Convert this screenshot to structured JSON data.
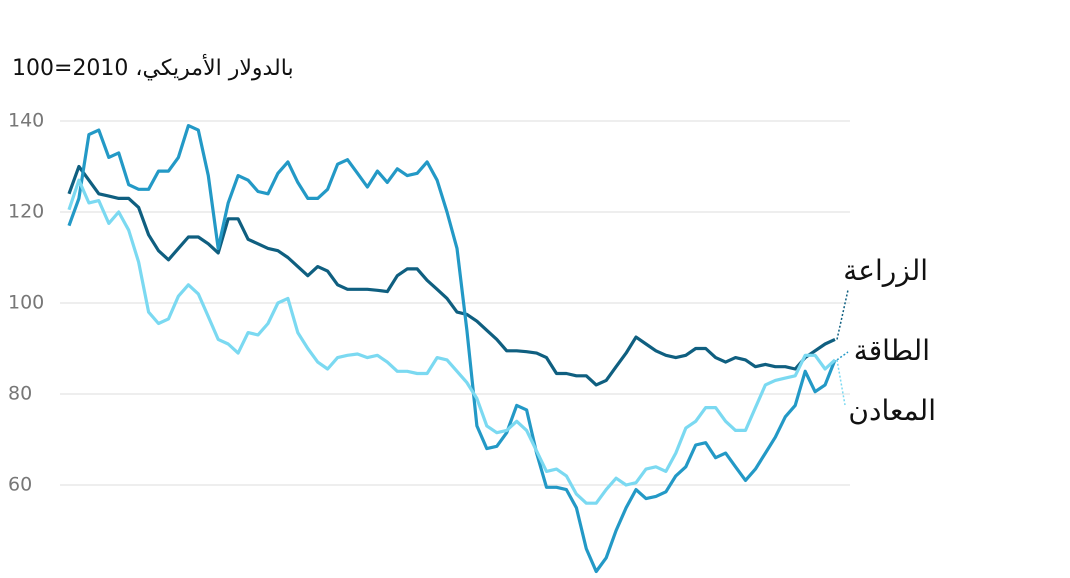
{
  "chart_data": {
    "type": "line",
    "title": "بالدولار الأمريكي، 2010=100",
    "ylim": [
      40,
      150
    ],
    "yticks": [
      60,
      80,
      100,
      120,
      140
    ],
    "grid": true,
    "series": [
      {
        "name": "الزراعة",
        "color": "#0f5f80",
        "values": [
          124,
          130,
          127,
          124,
          123.5,
          123,
          123,
          121,
          115,
          111.5,
          109.5,
          112,
          114.5,
          114.5,
          113,
          111,
          118.5,
          118.5,
          114,
          113,
          112,
          111.5,
          110,
          108,
          106,
          108,
          107,
          104,
          103,
          103,
          103,
          102.8,
          102.5,
          106,
          107.5,
          107.5,
          105,
          103,
          101,
          98,
          97.5,
          96,
          94,
          92,
          89.5,
          89.5,
          89.3,
          89,
          88,
          84.5,
          84.5,
          84,
          84,
          82,
          83,
          86,
          89,
          92.5,
          91,
          89.5,
          88.5,
          88,
          88.5,
          90,
          90,
          88,
          87,
          88,
          87.5,
          86,
          86.5,
          86,
          86,
          85.5,
          88,
          89.5,
          91,
          92
        ]
      },
      {
        "name": "الطاقة",
        "color": "#2399c6",
        "values": [
          117,
          123,
          137,
          138,
          132,
          133,
          126,
          125,
          125,
          129,
          129,
          132,
          139,
          138,
          128,
          112,
          122,
          128,
          127,
          124.5,
          124,
          128.5,
          131,
          126.5,
          123,
          123,
          125,
          130.5,
          131.5,
          128.5,
          125.5,
          129,
          126.5,
          129.5,
          128,
          128.5,
          131,
          127,
          120,
          112,
          94,
          73,
          68,
          68.5,
          71.5,
          77.5,
          76.5,
          67,
          59.5,
          59.5,
          59,
          55,
          46,
          41,
          44,
          50,
          55,
          59,
          57,
          57.5,
          58.5,
          62,
          64,
          68.8,
          69.3,
          66,
          67,
          64,
          61,
          63.5,
          67,
          70.5,
          75,
          77.5,
          85,
          80.5,
          82,
          87.5
        ]
      },
      {
        "name": "المعادن",
        "color": "#7bd9f1",
        "values": [
          120.5,
          127,
          122,
          122.5,
          117.5,
          120,
          116,
          109,
          98,
          95.5,
          96.5,
          101.5,
          104,
          102,
          97,
          92,
          91,
          89,
          93.5,
          93,
          95.5,
          100,
          101,
          93.5,
          90,
          87,
          85.5,
          88,
          88.5,
          88.8,
          88,
          88.5,
          87,
          85,
          85,
          84.5,
          84.5,
          88,
          87.5,
          85,
          82.5,
          79,
          73,
          71.5,
          72,
          74,
          72,
          67.5,
          63,
          63.5,
          62,
          58,
          56,
          56,
          59,
          61.5,
          60,
          60.5,
          63.5,
          64,
          63,
          67,
          72.5,
          74,
          77,
          77,
          74,
          72,
          72,
          77,
          82,
          83,
          83.5,
          84,
          88.5,
          88.5,
          85.5,
          87.5
        ]
      }
    ]
  }
}
